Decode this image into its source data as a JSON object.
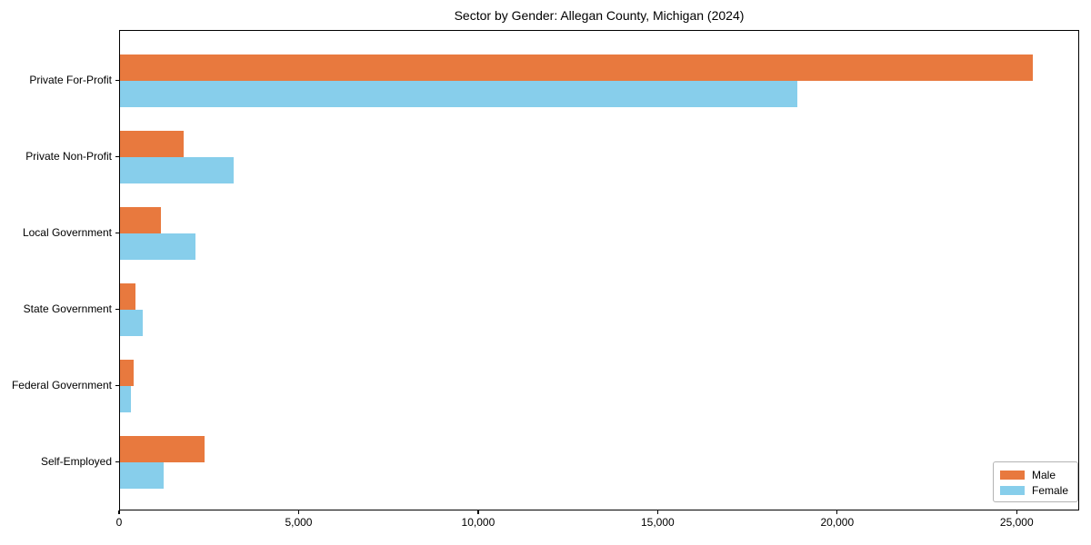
{
  "title": "Sector by Gender: Allegan County, Michigan (2024)",
  "legend": {
    "male_label": "Male",
    "female_label": "Female",
    "position": "lower right"
  },
  "colors": {
    "male": "#e8793e",
    "female": "#87ceeb",
    "axis": "#000000",
    "legend_border": "#b3b3b3",
    "background": "#ffffff"
  },
  "chart_data": {
    "type": "bar",
    "orientation": "horizontal",
    "title": "Sector by Gender: Allegan County, Michigan (2024)",
    "categories": [
      "Private For-Profit",
      "Private Non-Profit",
      "Local Government",
      "State Government",
      "Federal Government",
      "Self-Employed"
    ],
    "series": [
      {
        "name": "Male",
        "color": "#e8793e",
        "values": [
          25460,
          1770,
          1150,
          430,
          380,
          2360
        ]
      },
      {
        "name": "Female",
        "color": "#87ceeb",
        "values": [
          18900,
          3180,
          2100,
          630,
          310,
          1230
        ]
      }
    ],
    "xlabel": "",
    "ylabel": "",
    "xlim": [
      0,
      26740
    ],
    "x_ticks": [
      0,
      5000,
      10000,
      15000,
      20000,
      25000
    ],
    "x_tick_labels": [
      "0",
      "5,000",
      "10,000",
      "15,000",
      "20,000",
      "25,000"
    ],
    "grid": false,
    "legend_position": "lower right"
  }
}
